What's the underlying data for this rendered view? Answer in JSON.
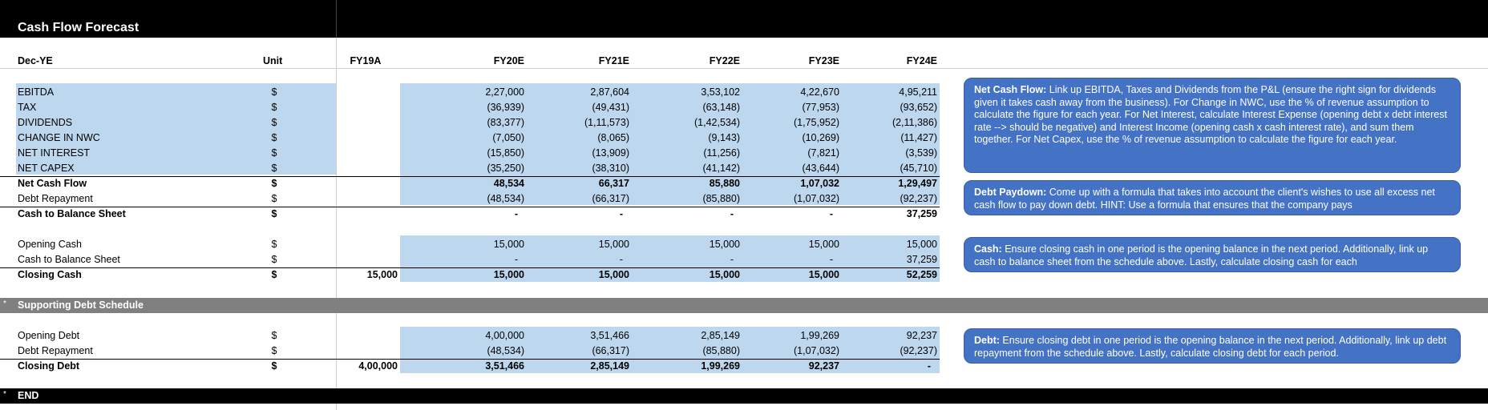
{
  "sheet": {
    "title": "Cash Flow Forecast",
    "columns": {
      "label": "Dec-YE",
      "unit": "Unit",
      "years": [
        "FY19A",
        "FY20E",
        "FY21E",
        "FY22E",
        "FY23E",
        "FY24E"
      ]
    },
    "cash_flow_rows": [
      {
        "label": "EBITDA",
        "unit": "$",
        "bold": false,
        "fy19": "",
        "vals": [
          "2,27,000",
          "2,87,604",
          "3,53,102",
          "4,22,670",
          "4,95,211"
        ]
      },
      {
        "label": "TAX",
        "unit": "$",
        "bold": false,
        "fy19": "",
        "vals": [
          "(36,939)",
          "(49,431)",
          "(63,148)",
          "(77,953)",
          "(93,652)"
        ]
      },
      {
        "label": "DIVIDENDS",
        "unit": "$",
        "bold": false,
        "fy19": "",
        "vals": [
          "(83,377)",
          "(1,11,573)",
          "(1,42,534)",
          "(1,75,952)",
          "(2,11,386)"
        ]
      },
      {
        "label": "CHANGE IN NWC",
        "unit": "$",
        "bold": false,
        "fy19": "",
        "vals": [
          "(7,050)",
          "(8,065)",
          "(9,143)",
          "(10,269)",
          "(11,427)"
        ]
      },
      {
        "label": "NET INTEREST",
        "unit": "$",
        "bold": false,
        "fy19": "",
        "vals": [
          "(15,850)",
          "(13,909)",
          "(11,256)",
          "(7,821)",
          "(3,539)"
        ]
      },
      {
        "label": "NET CAPEX",
        "unit": "$",
        "bold": false,
        "fy19": "",
        "vals": [
          "(35,250)",
          "(38,310)",
          "(41,142)",
          "(43,644)",
          "(45,710)"
        ]
      },
      {
        "label": "Net Cash Flow",
        "unit": "$",
        "bold": true,
        "fy19": "",
        "vals": [
          "48,534",
          "66,317",
          "85,880",
          "1,07,032",
          "1,29,497"
        ]
      },
      {
        "label": "Debt Repayment",
        "unit": "$",
        "bold": false,
        "fy19": "",
        "vals": [
          "(48,534)",
          "(66,317)",
          "(85,880)",
          "(1,07,032)",
          "(92,237)"
        ]
      },
      {
        "label": "Cash to Balance Sheet",
        "unit": "$",
        "bold": true,
        "fy19": "",
        "vals": [
          "-",
          "-",
          "-",
          "-",
          "37,259"
        ]
      }
    ],
    "cash_rows": [
      {
        "label": "Opening Cash",
        "unit": "$",
        "bold": false,
        "fy19": "",
        "vals": [
          "15,000",
          "15,000",
          "15,000",
          "15,000",
          "15,000"
        ]
      },
      {
        "label": "Cash to Balance Sheet",
        "unit": "$",
        "bold": false,
        "fy19": "",
        "vals": [
          "-",
          "-",
          "-",
          "-",
          "37,259"
        ]
      },
      {
        "label": "Closing Cash",
        "unit": "$",
        "bold": true,
        "fy19": "15,000",
        "vals": [
          "15,000",
          "15,000",
          "15,000",
          "15,000",
          "52,259"
        ]
      }
    ],
    "debt_section": {
      "marker": "*",
      "title": "Supporting Debt Schedule"
    },
    "debt_rows": [
      {
        "label": "Opening Debt",
        "unit": "$",
        "bold": false,
        "fy19": "",
        "vals": [
          "4,00,000",
          "3,51,466",
          "2,85,149",
          "1,99,269",
          "92,237"
        ]
      },
      {
        "label": "Debt Repayment",
        "unit": "$",
        "bold": false,
        "fy19": "",
        "vals": [
          "(48,534)",
          "(66,317)",
          "(85,880)",
          "(1,07,032)",
          "(92,237)"
        ]
      },
      {
        "label": "Closing Debt",
        "unit": "$",
        "bold": true,
        "fy19": "4,00,000",
        "vals": [
          "3,51,466",
          "2,85,149",
          "1,99,269",
          "92,237",
          "-"
        ]
      }
    ],
    "end_section": {
      "marker": "*",
      "title": "END"
    }
  },
  "notes": {
    "net_cash_flow": {
      "head": "Net Cash Flow:",
      "body": " Link up EBITDA, Taxes and Dividends from the P&L (ensure the right sign for dividends given it takes cash away from the business). For Change in NWC, use the % of revenue assumption to calculate the figure for each year. For Net Interest, calculate Interest Expense (opening debt x debt interest rate --> should be negative) and Interest Income (opening cash x cash interest rate), and sum them together. For Net Capex, use the % of revenue assumption to calculate the figure for each year."
    },
    "debt_paydown": {
      "head": "Debt Paydown:",
      "body": " Come up with a formula that takes into account the client's wishes to use all excess net cash flow to pay down debt. HINT: Use a formula that ensures that the company pays"
    },
    "cash": {
      "head": "Cash:",
      "body": " Ensure closing cash in one period is the opening balance in the next period. Additionally, link up cash to balance sheet from the schedule above. Lastly, calculate closing cash for each"
    },
    "debt": {
      "head": "Debt:",
      "body": " Ensure closing debt in one period is the opening balance in the next period. Additionally, link up debt repayment from the schedule above. Lastly, calculate closing debt for each period."
    }
  },
  "colors": {
    "input_fill": "#bdd7ee",
    "note_fill": "#4472c4",
    "section_band": "#808080",
    "header_band": "#000000"
  }
}
